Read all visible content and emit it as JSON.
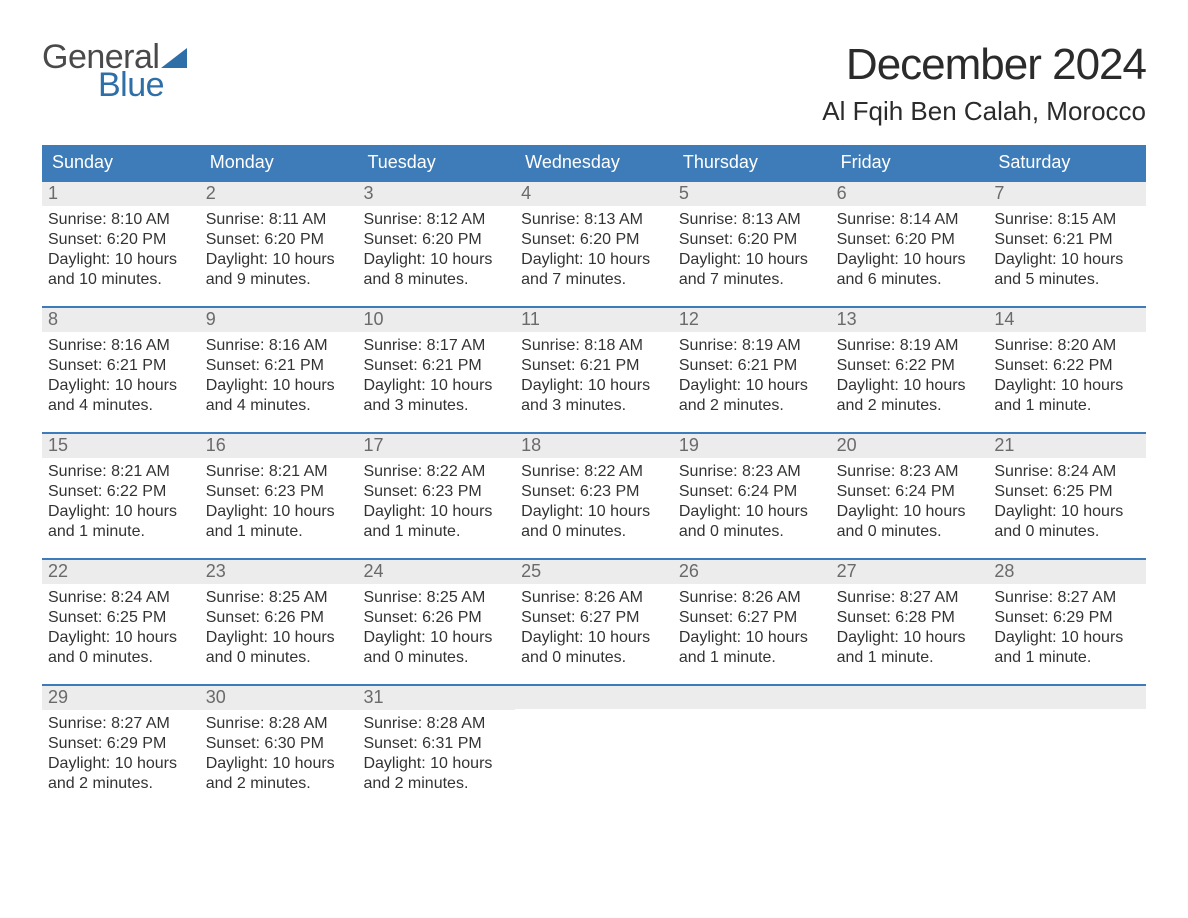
{
  "logo": {
    "text_general": "General",
    "text_blue": "Blue",
    "triangle_color": "#2f6fa7",
    "text_general_color": "#4a4a4a"
  },
  "title": "December 2024",
  "location": "Al Fqih Ben Calah, Morocco",
  "colors": {
    "header_bg": "#3d7cb8",
    "header_text": "#ffffff",
    "daynum_bg": "#ececec",
    "daynum_text": "#6a6a6a",
    "daynum_border": "#3d7cb8",
    "body_text": "#333333",
    "page_bg": "#ffffff"
  },
  "typography": {
    "title_fontsize": 44,
    "location_fontsize": 26,
    "weekday_fontsize": 18,
    "daynum_fontsize": 18,
    "body_fontsize": 16,
    "font_family": "Arial"
  },
  "weekdays": [
    "Sunday",
    "Monday",
    "Tuesday",
    "Wednesday",
    "Thursday",
    "Friday",
    "Saturday"
  ],
  "weeks": [
    [
      {
        "n": "1",
        "sr": "Sunrise: 8:10 AM",
        "ss": "Sunset: 6:20 PM",
        "dl": "Daylight: 10 hours and 10 minutes."
      },
      {
        "n": "2",
        "sr": "Sunrise: 8:11 AM",
        "ss": "Sunset: 6:20 PM",
        "dl": "Daylight: 10 hours and 9 minutes."
      },
      {
        "n": "3",
        "sr": "Sunrise: 8:12 AM",
        "ss": "Sunset: 6:20 PM",
        "dl": "Daylight: 10 hours and 8 minutes."
      },
      {
        "n": "4",
        "sr": "Sunrise: 8:13 AM",
        "ss": "Sunset: 6:20 PM",
        "dl": "Daylight: 10 hours and 7 minutes."
      },
      {
        "n": "5",
        "sr": "Sunrise: 8:13 AM",
        "ss": "Sunset: 6:20 PM",
        "dl": "Daylight: 10 hours and 7 minutes."
      },
      {
        "n": "6",
        "sr": "Sunrise: 8:14 AM",
        "ss": "Sunset: 6:20 PM",
        "dl": "Daylight: 10 hours and 6 minutes."
      },
      {
        "n": "7",
        "sr": "Sunrise: 8:15 AM",
        "ss": "Sunset: 6:21 PM",
        "dl": "Daylight: 10 hours and 5 minutes."
      }
    ],
    [
      {
        "n": "8",
        "sr": "Sunrise: 8:16 AM",
        "ss": "Sunset: 6:21 PM",
        "dl": "Daylight: 10 hours and 4 minutes."
      },
      {
        "n": "9",
        "sr": "Sunrise: 8:16 AM",
        "ss": "Sunset: 6:21 PM",
        "dl": "Daylight: 10 hours and 4 minutes."
      },
      {
        "n": "10",
        "sr": "Sunrise: 8:17 AM",
        "ss": "Sunset: 6:21 PM",
        "dl": "Daylight: 10 hours and 3 minutes."
      },
      {
        "n": "11",
        "sr": "Sunrise: 8:18 AM",
        "ss": "Sunset: 6:21 PM",
        "dl": "Daylight: 10 hours and 3 minutes."
      },
      {
        "n": "12",
        "sr": "Sunrise: 8:19 AM",
        "ss": "Sunset: 6:21 PM",
        "dl": "Daylight: 10 hours and 2 minutes."
      },
      {
        "n": "13",
        "sr": "Sunrise: 8:19 AM",
        "ss": "Sunset: 6:22 PM",
        "dl": "Daylight: 10 hours and 2 minutes."
      },
      {
        "n": "14",
        "sr": "Sunrise: 8:20 AM",
        "ss": "Sunset: 6:22 PM",
        "dl": "Daylight: 10 hours and 1 minute."
      }
    ],
    [
      {
        "n": "15",
        "sr": "Sunrise: 8:21 AM",
        "ss": "Sunset: 6:22 PM",
        "dl": "Daylight: 10 hours and 1 minute."
      },
      {
        "n": "16",
        "sr": "Sunrise: 8:21 AM",
        "ss": "Sunset: 6:23 PM",
        "dl": "Daylight: 10 hours and 1 minute."
      },
      {
        "n": "17",
        "sr": "Sunrise: 8:22 AM",
        "ss": "Sunset: 6:23 PM",
        "dl": "Daylight: 10 hours and 1 minute."
      },
      {
        "n": "18",
        "sr": "Sunrise: 8:22 AM",
        "ss": "Sunset: 6:23 PM",
        "dl": "Daylight: 10 hours and 0 minutes."
      },
      {
        "n": "19",
        "sr": "Sunrise: 8:23 AM",
        "ss": "Sunset: 6:24 PM",
        "dl": "Daylight: 10 hours and 0 minutes."
      },
      {
        "n": "20",
        "sr": "Sunrise: 8:23 AM",
        "ss": "Sunset: 6:24 PM",
        "dl": "Daylight: 10 hours and 0 minutes."
      },
      {
        "n": "21",
        "sr": "Sunrise: 8:24 AM",
        "ss": "Sunset: 6:25 PM",
        "dl": "Daylight: 10 hours and 0 minutes."
      }
    ],
    [
      {
        "n": "22",
        "sr": "Sunrise: 8:24 AM",
        "ss": "Sunset: 6:25 PM",
        "dl": "Daylight: 10 hours and 0 minutes."
      },
      {
        "n": "23",
        "sr": "Sunrise: 8:25 AM",
        "ss": "Sunset: 6:26 PM",
        "dl": "Daylight: 10 hours and 0 minutes."
      },
      {
        "n": "24",
        "sr": "Sunrise: 8:25 AM",
        "ss": "Sunset: 6:26 PM",
        "dl": "Daylight: 10 hours and 0 minutes."
      },
      {
        "n": "25",
        "sr": "Sunrise: 8:26 AM",
        "ss": "Sunset: 6:27 PM",
        "dl": "Daylight: 10 hours and 0 minutes."
      },
      {
        "n": "26",
        "sr": "Sunrise: 8:26 AM",
        "ss": "Sunset: 6:27 PM",
        "dl": "Daylight: 10 hours and 1 minute."
      },
      {
        "n": "27",
        "sr": "Sunrise: 8:27 AM",
        "ss": "Sunset: 6:28 PM",
        "dl": "Daylight: 10 hours and 1 minute."
      },
      {
        "n": "28",
        "sr": "Sunrise: 8:27 AM",
        "ss": "Sunset: 6:29 PM",
        "dl": "Daylight: 10 hours and 1 minute."
      }
    ],
    [
      {
        "n": "29",
        "sr": "Sunrise: 8:27 AM",
        "ss": "Sunset: 6:29 PM",
        "dl": "Daylight: 10 hours and 2 minutes."
      },
      {
        "n": "30",
        "sr": "Sunrise: 8:28 AM",
        "ss": "Sunset: 6:30 PM",
        "dl": "Daylight: 10 hours and 2 minutes."
      },
      {
        "n": "31",
        "sr": "Sunrise: 8:28 AM",
        "ss": "Sunset: 6:31 PM",
        "dl": "Daylight: 10 hours and 2 minutes."
      },
      {
        "empty": true
      },
      {
        "empty": true
      },
      {
        "empty": true
      },
      {
        "empty": true
      }
    ]
  ]
}
